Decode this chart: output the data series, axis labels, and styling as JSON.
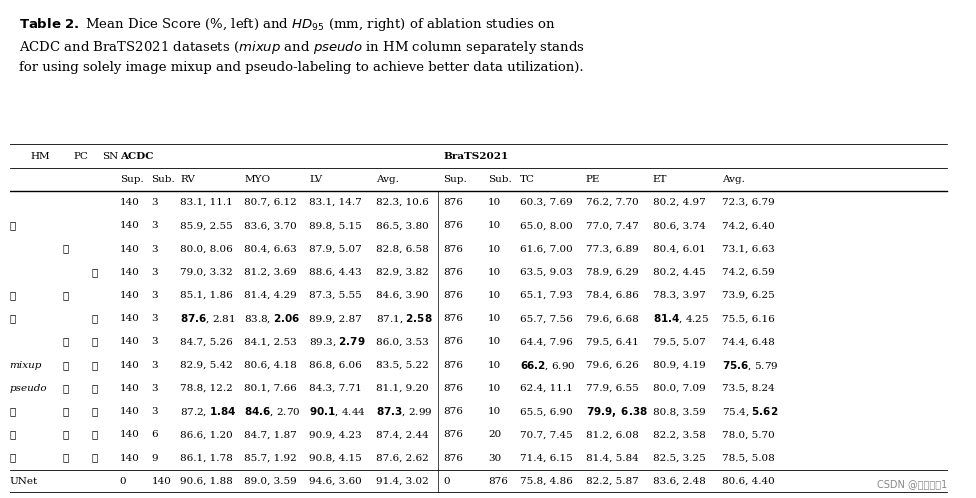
{
  "title_bold": "Table 2.",
  "title_rest": " Mean Dice Score (%, left) and $HD_{95}$ (mm, right) of ablation studies on\nACDC and BraTS2021 datasets (",
  "title_italic1": "mixup",
  "title_mid": " and ",
  "title_italic2": "pseudo",
  "title_end": " in HM column separately stands\nfor using solely image mixup and pseudo-labeling to achieve better data utilization).",
  "bg_color": "#ffffff",
  "header_row1": [
    "HM",
    "PC",
    "SN",
    "ACDC",
    "",
    "",
    "",
    "",
    "",
    "BraTS2021",
    "",
    "",
    "",
    "",
    ""
  ],
  "header_row2": [
    "",
    "",
    "",
    "Sup.",
    "Sub.",
    "RV",
    "MYO",
    "LV",
    "Avg.",
    "Sup.",
    "Sub.",
    "TC",
    "PE",
    "ET",
    "Avg."
  ],
  "rows": [
    {
      "hm": "",
      "pc": "",
      "sn": "",
      "sup": "140",
      "sub": "3",
      "rv": "83.1, 11.1",
      "myo": "80.7, 6.12",
      "lv": "83.1, 14.7",
      "avg_acdc": "82.3, 10.6",
      "bsup": "876",
      "bsub": "10",
      "tc": "60.3, 7.69",
      "pe": "76.2, 7.70",
      "et": "80.2, 4.97",
      "avg_brats": "72.3, 6.79",
      "bold_cells": []
    },
    {
      "hm": "✓",
      "pc": "",
      "sn": "",
      "sup": "140",
      "sub": "3",
      "rv": "85.9, 2.55",
      "myo": "83.6, 3.70",
      "lv": "89.8, 5.15",
      "avg_acdc": "86.5, 3.80",
      "bsup": "876",
      "bsub": "10",
      "tc": "65.0, 8.00",
      "pe": "77.0, 7.47",
      "et": "80.6, 3.74",
      "avg_brats": "74.2, 6.40",
      "bold_cells": []
    },
    {
      "hm": "",
      "pc": "✓",
      "sn": "",
      "sup": "140",
      "sub": "3",
      "rv": "80.0, 8.06",
      "myo": "80.4, 6.63",
      "lv": "87.9, 5.07",
      "avg_acdc": "82.8, 6.58",
      "bsup": "876",
      "bsub": "10",
      "tc": "61.6, 7.00",
      "pe": "77.3, 6.89",
      "et": "80.4, 6.01",
      "avg_brats": "73.1, 6.63",
      "bold_cells": []
    },
    {
      "hm": "",
      "pc": "",
      "sn": "✓",
      "sup": "140",
      "sub": "3",
      "rv": "79.0, 3.32",
      "myo": "81.2, 3.69",
      "lv": "88.6, 4.43",
      "avg_acdc": "82.9, 3.82",
      "bsup": "876",
      "bsub": "10",
      "tc": "63.5, 9.03",
      "pe": "78.9, 6.29",
      "et": "80.2, 4.45",
      "avg_brats": "74.2, 6.59",
      "bold_cells": []
    },
    {
      "hm": "✓",
      "pc": "✓",
      "sn": "",
      "sup": "140",
      "sub": "3",
      "rv": "85.1, 1.86",
      "myo": "81.4, 4.29",
      "lv": "87.3, 5.55",
      "avg_acdc": "84.6, 3.90",
      "bsup": "876",
      "bsub": "10",
      "tc": "65.1, 7.93",
      "pe": "78.4, 6.86",
      "et": "78.3, 3.97",
      "avg_brats": "73.9, 6.25",
      "bold_cells": []
    },
    {
      "hm": "✓",
      "pc": "",
      "sn": "✓",
      "sup": "140",
      "sub": "3",
      "rv": "87.6, 2.81",
      "myo": "83.8, 2.06",
      "lv": "89.9, 2.87",
      "avg_acdc": "87.1, 2.58",
      "bsup": "876",
      "bsub": "10",
      "tc": "65.7, 7.56",
      "pe": "79.6, 6.68",
      "et": "81.4, 4.25",
      "avg_brats": "75.5, 6.16",
      "bold_cells": [
        "rv",
        "myo_hd",
        "avg_acdc_hd",
        "et"
      ]
    },
    {
      "hm": "",
      "pc": "✓",
      "sn": "✓",
      "sup": "140",
      "sub": "3",
      "rv": "84.7, 5.26",
      "myo": "84.1, 2.53",
      "lv": "89.3, 2.79",
      "avg_acdc": "86.0, 3.53",
      "bsup": "876",
      "bsub": "10",
      "tc": "64.4, 7.96",
      "pe": "79.5, 6.41",
      "et": "79.5, 5.07",
      "avg_brats": "74.4, 6.48",
      "bold_cells": [
        "lv_hd"
      ]
    },
    {
      "hm": "mixup",
      "pc": "✓",
      "sn": "✓",
      "sup": "140",
      "sub": "3",
      "rv": "82.9, 5.42",
      "myo": "80.6, 4.18",
      "lv": "86.8, 6.06",
      "avg_acdc": "83.5, 5.22",
      "bsup": "876",
      "bsub": "10",
      "tc": "66.2, 6.90",
      "pe": "79.6, 6.26",
      "et": "80.9, 4.19",
      "avg_brats": "75.6, 5.79",
      "bold_cells": [
        "tc",
        "avg_brats"
      ]
    },
    {
      "hm": "pseudo",
      "pc": "✓",
      "sn": "✓",
      "sup": "140",
      "sub": "3",
      "rv": "78.8, 12.2",
      "myo": "80.1, 7.66",
      "lv": "84.3, 7.71",
      "avg_acdc": "81.1, 9.20",
      "bsup": "876",
      "bsub": "10",
      "tc": "62.4, 11.1",
      "pe": "77.9, 6.55",
      "et": "80.0, 7.09",
      "avg_brats": "73.5, 8.24",
      "bold_cells": []
    },
    {
      "hm": "✓",
      "pc": "✓",
      "sn": "✓",
      "sup": "140",
      "sub": "3",
      "rv": "87.2, 1.84",
      "myo": "84.6, 2.70",
      "lv": "90.1, 4.44",
      "avg_acdc": "87.3, 2.99",
      "bsup": "876",
      "bsub": "10",
      "tc": "65.5, 6.90",
      "pe": "79.9, 6.38",
      "et": "80.8, 3.59",
      "avg_brats": "75.4, 5.62",
      "bold_cells": [
        "rv_hd",
        "myo",
        "lv",
        "avg_acdc",
        "pe",
        "pe_hd",
        "avg_brats_hd"
      ]
    },
    {
      "hm": "✓",
      "pc": "✓",
      "sn": "✓",
      "sup": "140",
      "sub": "6",
      "rv": "86.6, 1.20",
      "myo": "84.7, 1.87",
      "lv": "90.9, 4.23",
      "avg_acdc": "87.4, 2.44",
      "bsup": "876",
      "bsub": "20",
      "tc": "70.7, 7.45",
      "pe": "81.2, 6.08",
      "et": "82.2, 3.58",
      "avg_brats": "78.0, 5.70",
      "bold_cells": []
    },
    {
      "hm": "✓",
      "pc": "✓",
      "sn": "✓",
      "sup": "140",
      "sub": "9",
      "rv": "86.1, 1.78",
      "myo": "85.7, 1.92",
      "lv": "90.8, 4.15",
      "avg_acdc": "87.6, 2.62",
      "bsup": "876",
      "bsub": "30",
      "tc": "71.4, 6.15",
      "pe": "81.4, 5.84",
      "et": "82.5, 3.25",
      "avg_brats": "78.5, 5.08",
      "bold_cells": []
    },
    {
      "hm": "UNet",
      "pc": "",
      "sn": "",
      "sup": "0",
      "sub": "140",
      "rv": "90.6, 1.88",
      "myo": "89.0, 3.59",
      "lv": "94.6, 3.60",
      "avg_acdc": "91.4, 3.02",
      "bsup": "0",
      "bsub": "876",
      "tc": "75.8, 4.86",
      "pe": "82.2, 5.87",
      "et": "83.6, 2.48",
      "avg_brats": "80.6, 4.40",
      "bold_cells": []
    }
  ]
}
